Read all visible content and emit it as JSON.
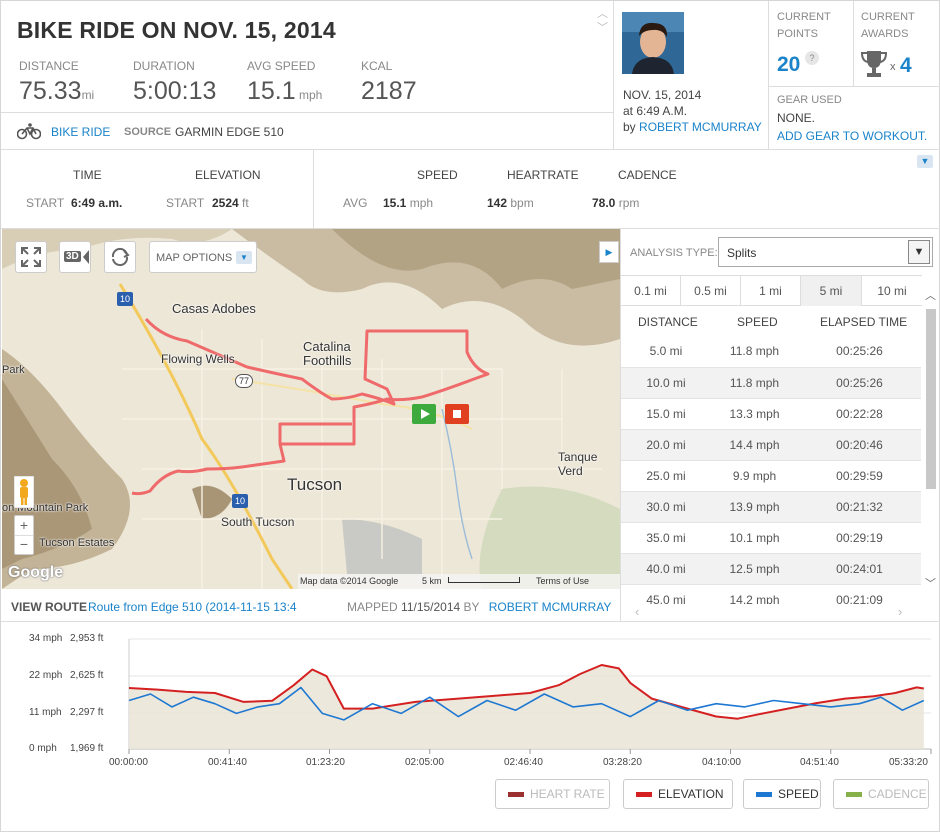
{
  "header": {
    "title": "BIKE RIDE ON NOV. 15, 2014",
    "stats": [
      {
        "label": "DISTANCE",
        "value": "75.33",
        "unit": "mi"
      },
      {
        "label": "DURATION",
        "value": "5:00:13",
        "unit": ""
      },
      {
        "label": "AVG SPEED",
        "value": "15.1",
        "unit": "mph"
      },
      {
        "label": "KCAL",
        "value": "2187",
        "unit": ""
      }
    ],
    "activity_type": "BIKE RIDE",
    "source_label": "SOURCE",
    "source_value": "GARMIN EDGE 510"
  },
  "user": {
    "date": "NOV. 15, 2014",
    "time": "at 6:49 A.M.",
    "by_prefix": "by",
    "name": "ROBERT MCMURRAY"
  },
  "points": {
    "label_line1": "CURRENT",
    "label_line2": "POINTS",
    "value": "20",
    "help": "?"
  },
  "awards": {
    "label_line1": "CURRENT",
    "label_line2": "AWARDS",
    "multiplier": "x",
    "value": "4"
  },
  "gear": {
    "label": "GEAR USED",
    "value": "NONE.",
    "link": "ADD GEAR TO WORKOUT."
  },
  "summary": {
    "time_header": "TIME",
    "elevation_header": "ELEVATION",
    "time_start_label": "START",
    "time_start_value": "6:49 a.m.",
    "elev_start_label": "START",
    "elev_start_value": "2524",
    "elev_unit": "ft",
    "speed_header": "SPEED",
    "heartrate_header": "HEARTRATE",
    "cadence_header": "CADENCE",
    "avg_label": "AVG",
    "speed_value": "15.1",
    "speed_unit": "mph",
    "hr_value": "142",
    "hr_unit": "bpm",
    "cadence_value": "78.0",
    "cadence_unit": "rpm"
  },
  "map": {
    "options_label": "MAP OPTIONS",
    "btn_3d": "3D",
    "labels": {
      "casas_adobes": "Casas Adobes",
      "flowing_wells": "Flowing Wells",
      "catalina1": "Catalina",
      "catalina2": "Foothills",
      "tanque_verde": "Tanque Verd",
      "tucson": "Tucson",
      "south_tucson": "South Tucson",
      "tucson_estates": "Tucson Estates",
      "mountain_park": "on Mountain Park",
      "park": "Park",
      "i10a": "10",
      "i10b": "10",
      "r77": "77"
    },
    "google": "Google",
    "map_data": "Map data ©2014 Google",
    "scale": "5 km",
    "terms": "Terms of Use"
  },
  "route": {
    "view_label": "VIEW ROUTE",
    "route_name": "Route from Edge 510 (2014-11-15 13:4",
    "mapped_label": "MAPPED",
    "mapped_date": "11/15/2014",
    "by_label": "BY",
    "mapped_by": "ROBERT MCMURRAY"
  },
  "analysis": {
    "label": "ANALYSIS TYPE:",
    "selected": "Splits",
    "tabs": [
      "0.1 mi",
      "0.5 mi",
      "1 mi",
      "5 mi",
      "10 mi"
    ],
    "columns": [
      "DISTANCE",
      "SPEED",
      "ELAPSED TIME"
    ],
    "rows": [
      [
        "5.0 mi",
        "11.8 mph",
        "00:25:26"
      ],
      [
        "10.0 mi",
        "11.8 mph",
        "00:25:26"
      ],
      [
        "15.0 mi",
        "13.3 mph",
        "00:22:28"
      ],
      [
        "20.0 mi",
        "14.4 mph",
        "00:20:46"
      ],
      [
        "25.0 mi",
        "9.9 mph",
        "00:29:59"
      ],
      [
        "30.0 mi",
        "13.9 mph",
        "00:21:32"
      ],
      [
        "35.0 mi",
        "10.1 mph",
        "00:29:19"
      ],
      [
        "40.0 mi",
        "12.5 mph",
        "00:24:01"
      ],
      [
        "45.0 mi",
        "14.2 mph",
        "00:21:09"
      ]
    ]
  },
  "chart_data": {
    "type": "line",
    "speed_ticks": [
      "34 mph",
      "22 mph",
      "11 mph",
      "0 mph"
    ],
    "elevation_ticks": [
      "2,953 ft",
      "2,625 ft",
      "2,297 ft",
      "1,969 ft"
    ],
    "x_ticks": [
      "00:00:00",
      "00:41:40",
      "01:23:20",
      "02:05:00",
      "02:46:40",
      "03:28:20",
      "04:10:00",
      "04:51:40",
      "05:33:20"
    ],
    "ylim_speed": [
      0,
      34
    ],
    "ylim_elevation": [
      1969,
      2953
    ],
    "series": [
      {
        "name": "ELEVATION",
        "color": "#d42020",
        "x_hours": [
          0,
          0.2,
          0.4,
          0.6,
          0.8,
          1.0,
          1.15,
          1.28,
          1.38,
          1.5,
          1.7,
          2.0,
          2.3,
          2.6,
          2.8,
          3.0,
          3.15,
          3.3,
          3.42,
          3.5,
          3.65,
          3.9,
          4.1,
          4.25,
          4.4,
          4.6,
          4.8,
          5.0,
          5.2,
          5.35,
          5.5,
          5.55
        ],
        "y_ft": [
          2515,
          2500,
          2480,
          2470,
          2390,
          2400,
          2540,
          2680,
          2620,
          2330,
          2330,
          2390,
          2420,
          2450,
          2470,
          2540,
          2640,
          2720,
          2690,
          2560,
          2420,
          2330,
          2260,
          2240,
          2280,
          2330,
          2380,
          2420,
          2440,
          2470,
          2520,
          2510
        ]
      },
      {
        "name": "SPEED",
        "color": "#1e78d2",
        "x_hours": [
          0,
          0.15,
          0.3,
          0.45,
          0.6,
          0.75,
          0.9,
          1.05,
          1.2,
          1.35,
          1.5,
          1.7,
          1.9,
          2.1,
          2.3,
          2.5,
          2.7,
          2.9,
          3.1,
          3.3,
          3.5,
          3.7,
          3.9,
          4.1,
          4.3,
          4.5,
          4.7,
          4.9,
          5.1,
          5.25,
          5.4,
          5.55
        ],
        "y_mph": [
          15,
          17,
          13,
          16,
          14,
          11,
          13,
          14,
          19,
          11,
          9,
          14,
          11,
          16,
          10,
          15,
          12,
          17,
          13,
          14,
          10,
          15,
          12,
          14,
          13,
          15,
          14,
          13,
          14,
          16,
          12,
          15
        ]
      },
      {
        "name": "HEART RATE",
        "color": "#8b3333",
        "enabled": false
      },
      {
        "name": "CADENCE",
        "color": "#8ab04a",
        "enabled": false
      }
    ]
  },
  "legend": [
    {
      "label": "HEART RATE",
      "color": "#9a3030",
      "enabled": false
    },
    {
      "label": "ELEVATION",
      "color": "#d42020",
      "enabled": true
    },
    {
      "label": "SPEED",
      "color": "#1e78d2",
      "enabled": true
    },
    {
      "label": "CADENCE",
      "color": "#86b04a",
      "enabled": false
    }
  ]
}
